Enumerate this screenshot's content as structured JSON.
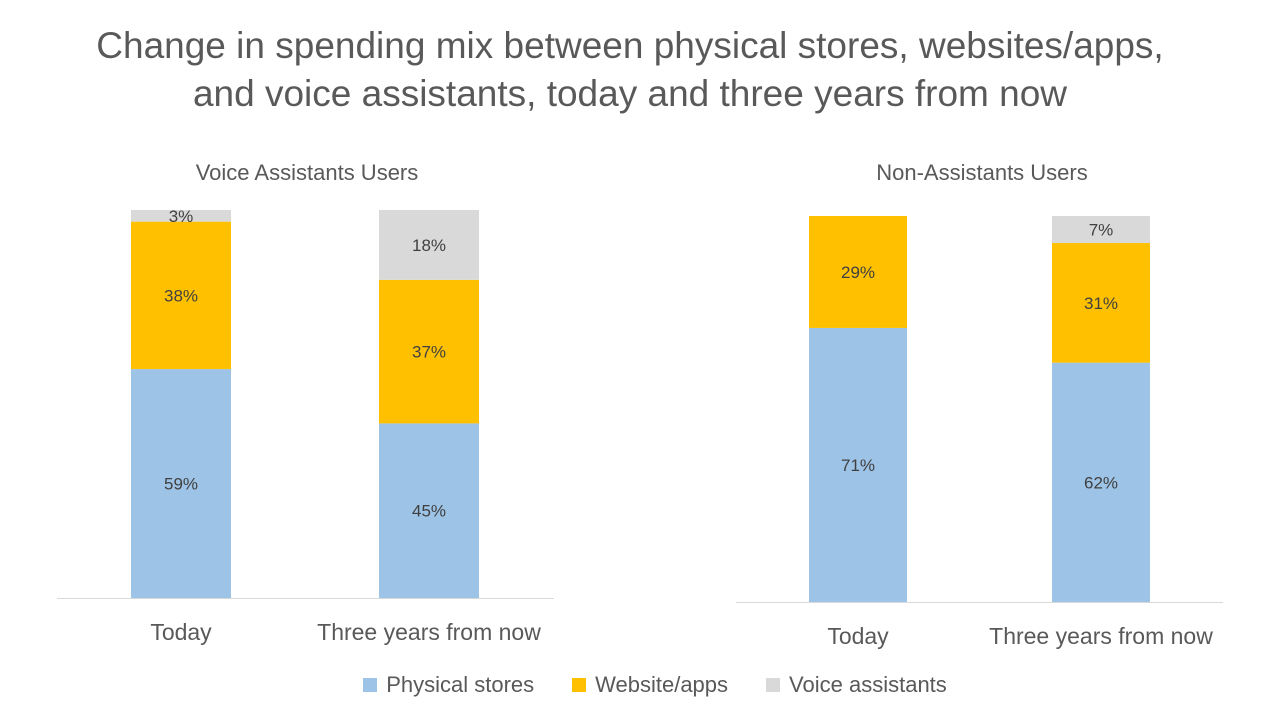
{
  "title": {
    "line1": "Change in spending mix between physical stores, websites/apps,",
    "line2": "and voice assistants, today and three years from now"
  },
  "colors": {
    "physical": "#9dc3e6",
    "web": "#ffc000",
    "voice": "#d9d9d9"
  },
  "legend": [
    {
      "label": "Physical stores",
      "color": "#9dc3e6"
    },
    {
      "label": "Website/apps",
      "color": "#ffc000"
    },
    {
      "label": "Voice assistants",
      "color": "#d9d9d9"
    }
  ],
  "chart_data": [
    {
      "type": "bar",
      "stacked": true,
      "title": "Voice Assistants Users",
      "categories": [
        "Today",
        "Three years from now"
      ],
      "series": [
        {
          "name": "Physical stores",
          "values": [
            59,
            45
          ],
          "labels": [
            "59%",
            "45%"
          ]
        },
        {
          "name": "Website/apps",
          "values": [
            38,
            37
          ],
          "labels": [
            "38%",
            "37%"
          ]
        },
        {
          "name": "Voice assistants",
          "values": [
            3,
            18
          ],
          "labels": [
            "3%",
            "18%"
          ]
        }
      ],
      "ylim": [
        0,
        100
      ]
    },
    {
      "type": "bar",
      "stacked": true,
      "title": "Non-Assistants Users",
      "categories": [
        "Today",
        "Three years from now"
      ],
      "series": [
        {
          "name": "Physical stores",
          "values": [
            71,
            62
          ],
          "labels": [
            "71%",
            "62%"
          ]
        },
        {
          "name": "Website/apps",
          "values": [
            29,
            31
          ],
          "labels": [
            "29%",
            "31%"
          ]
        },
        {
          "name": "Voice assistants",
          "values": [
            0,
            7
          ],
          "labels": [
            "",
            "7%"
          ]
        }
      ],
      "ylim": [
        0,
        100
      ]
    }
  ]
}
